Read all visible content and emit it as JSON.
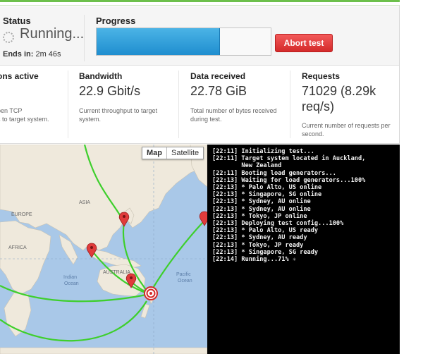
{
  "status": {
    "label": "Status",
    "value": "Running...",
    "ends_in_label": "Ends in:",
    "ends_in_value": "2m 46s"
  },
  "progress": {
    "label": "Progress",
    "fraction": 0.71,
    "abort_label": "Abort test"
  },
  "metrics": [
    {
      "title": "ons active",
      "value": "",
      "desc": [
        "pen TCP",
        "s to target system."
      ]
    },
    {
      "title": "Bandwidth",
      "value": "22.9 Gbit/s",
      "desc": [
        "Current throughput to target",
        "system."
      ]
    },
    {
      "title": "Data received",
      "value": "22.78 GiB",
      "desc": [
        "Total number of bytes received",
        "during test."
      ]
    },
    {
      "title": "Requests",
      "value": "71029 (8.29k\nreq/s)",
      "desc": [
        "Current number of requests per",
        "second."
      ]
    }
  ],
  "map": {
    "type_buttons": [
      "Map",
      "Satellite"
    ],
    "active_type": "Map",
    "labels": {
      "europe": "EUROPE",
      "asia": "ASIA",
      "africa": "AFRICA",
      "indian_ocean_1": "Indian",
      "indian_ocean_2": "Ocean",
      "australia": "AUSTRALIA",
      "pacific_1": "Pacific",
      "pacific_2": "Ocean"
    },
    "colors": {
      "water": "#a9c8e8",
      "land": "#efe9dc",
      "route": "#3ecf2c",
      "pin": "#e03b3b"
    }
  },
  "console": {
    "lines": [
      "[22:11] Initializing test...",
      "[22:11] Target system located in Auckland,",
      "        New Zealand",
      "[22:11] Booting load generators...",
      "[22:13] Waiting for load generators...100%",
      "[22:13] * Palo Alto, US online",
      "[22:13] * Singapore, SG online",
      "[22:13] * Sydney, AU online",
      "[22:13] * Sydney, AU online",
      "[22:13] * Tokyo, JP online",
      "[22:13] Deploying test config...100%",
      "[22:13] * Palo Alto, US ready",
      "[22:13] * Sydney, AU ready",
      "[22:13] * Tokyo, JP ready",
      "[22:13] * Singapore, SG ready",
      "[22:14] Running...71%"
    ]
  }
}
